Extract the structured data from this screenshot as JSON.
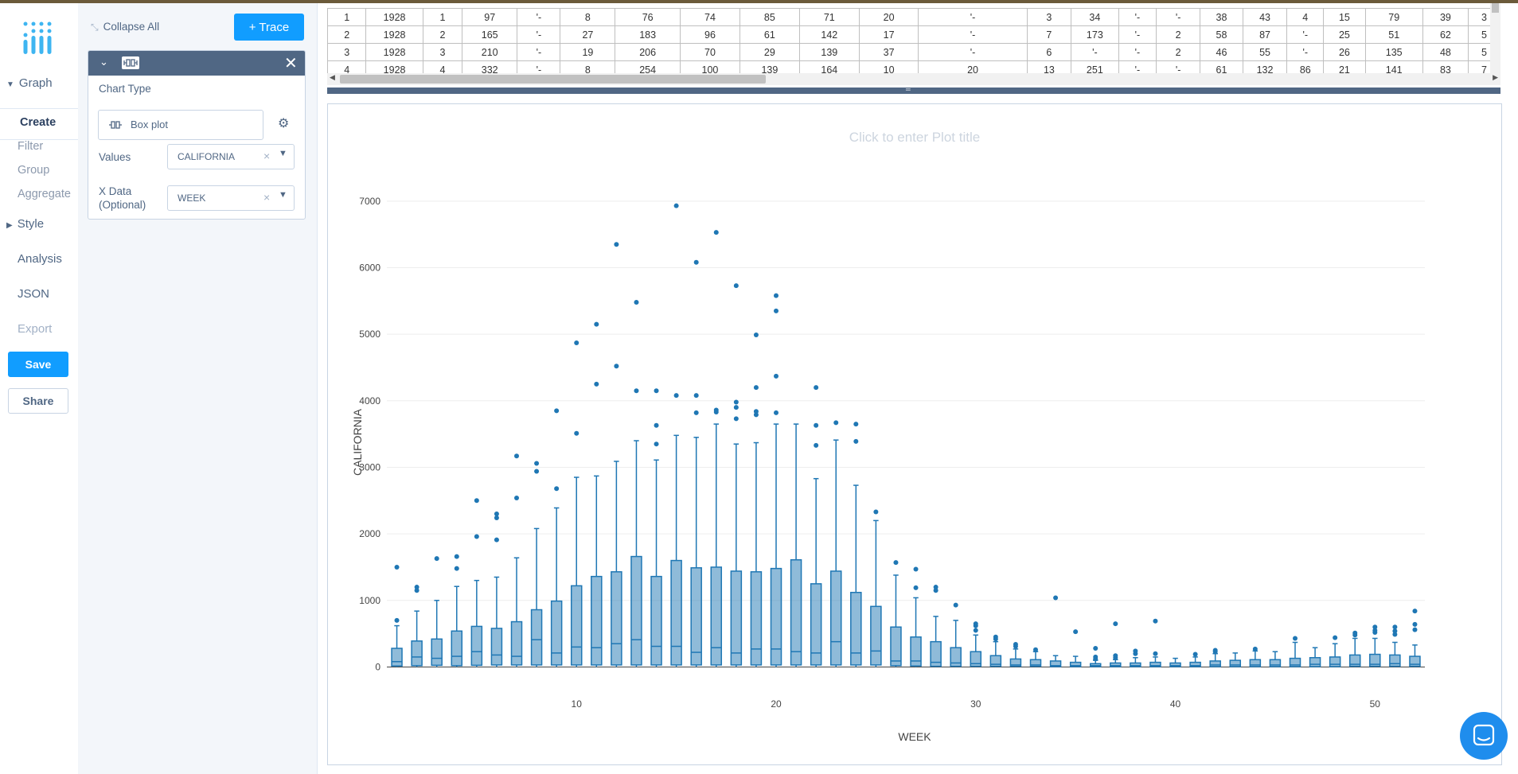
{
  "nav": {
    "graph_label": "Graph",
    "graph_items": [
      "Create",
      "Filter",
      "Group",
      "Aggregate"
    ],
    "style_label": "Style",
    "analysis_label": "Analysis",
    "json_label": "JSON",
    "export_label": "Export",
    "save_label": "Save",
    "share_label": "Share"
  },
  "panel": {
    "collapse_all": "Collapse All",
    "add_trace": "+ Trace",
    "chart_type_label": "Chart Type",
    "chart_type_value": "Box plot",
    "values_label": "Values",
    "values_value": "CALIFORNIA",
    "xdata_label_1": "X Data",
    "xdata_label_2": "(Optional)",
    "xdata_value": "WEEK"
  },
  "grid": {
    "rows": [
      [
        "1",
        "1928",
        "1",
        "97",
        "'-",
        "8",
        "76",
        "74",
        "85",
        "71",
        "20",
        "'-",
        "3",
        "34",
        "'-",
        "'-",
        "38",
        "43",
        "4",
        "15",
        "79",
        "39",
        "3"
      ],
      [
        "2",
        "1928",
        "2",
        "165",
        "'-",
        "27",
        "183",
        "96",
        "61",
        "142",
        "17",
        "'-",
        "7",
        "173",
        "'-",
        "2",
        "58",
        "87",
        "'-",
        "25",
        "51",
        "62",
        "5"
      ],
      [
        "3",
        "1928",
        "3",
        "210",
        "'-",
        "19",
        "206",
        "70",
        "29",
        "139",
        "37",
        "'-",
        "6",
        "'-",
        "'-",
        "2",
        "46",
        "55",
        "'-",
        "26",
        "135",
        "48",
        "5"
      ],
      [
        "4",
        "1928",
        "4",
        "332",
        "'-",
        "8",
        "254",
        "100",
        "139",
        "164",
        "10",
        "20",
        "13",
        "251",
        "'-",
        "'-",
        "61",
        "132",
        "86",
        "21",
        "141",
        "83",
        "7"
      ]
    ]
  },
  "plot": {
    "title_placeholder": "Click to enter Plot title"
  },
  "chart_data": {
    "type": "box",
    "xlabel": "WEEK",
    "ylabel": "CALIFORNIA",
    "title": "",
    "xlim": [
      0.5,
      52.5
    ],
    "ylim": [
      -150,
      7500
    ],
    "x_ticks": [
      10,
      20,
      30,
      40,
      50
    ],
    "y_ticks": [
      0,
      1000,
      2000,
      3000,
      4000,
      5000,
      6000,
      7000
    ],
    "color": "#1f77b4",
    "grid": true,
    "boxes": [
      {
        "week": 1,
        "q1": 15,
        "median": 80,
        "q3": 280,
        "lower": 0,
        "upper": 620,
        "outliers": [
          700,
          1500
        ]
      },
      {
        "week": 2,
        "q1": 20,
        "median": 150,
        "q3": 390,
        "lower": 0,
        "upper": 840,
        "outliers": [
          1150,
          1200
        ]
      },
      {
        "week": 3,
        "q1": 25,
        "median": 130,
        "q3": 420,
        "lower": 0,
        "upper": 1000,
        "outliers": [
          1630
        ]
      },
      {
        "week": 4,
        "q1": 20,
        "median": 160,
        "q3": 540,
        "lower": 0,
        "upper": 1210,
        "outliers": [
          1480,
          1660
        ]
      },
      {
        "week": 5,
        "q1": 25,
        "median": 230,
        "q3": 610,
        "lower": 0,
        "upper": 1300,
        "outliers": [
          1960,
          2500
        ]
      },
      {
        "week": 6,
        "q1": 30,
        "median": 180,
        "q3": 580,
        "lower": 0,
        "upper": 1350,
        "outliers": [
          1910,
          2240,
          2300
        ]
      },
      {
        "week": 7,
        "q1": 30,
        "median": 160,
        "q3": 680,
        "lower": 0,
        "upper": 1640,
        "outliers": [
          2540,
          3170
        ]
      },
      {
        "week": 8,
        "q1": 30,
        "median": 410,
        "q3": 860,
        "lower": 0,
        "upper": 2080,
        "outliers": [
          2940,
          3060
        ]
      },
      {
        "week": 9,
        "q1": 30,
        "median": 210,
        "q3": 990,
        "lower": 0,
        "upper": 2390,
        "outliers": [
          2680,
          3850
        ]
      },
      {
        "week": 10,
        "q1": 30,
        "median": 300,
        "q3": 1220,
        "lower": 0,
        "upper": 2850,
        "outliers": [
          3510,
          4870
        ]
      },
      {
        "week": 11,
        "q1": 30,
        "median": 290,
        "q3": 1360,
        "lower": 0,
        "upper": 2870,
        "outliers": [
          4250,
          5150
        ]
      },
      {
        "week": 12,
        "q1": 30,
        "median": 350,
        "q3": 1430,
        "lower": 0,
        "upper": 3090,
        "outliers": [
          4520,
          6350
        ]
      },
      {
        "week": 13,
        "q1": 30,
        "median": 410,
        "q3": 1660,
        "lower": 0,
        "upper": 3400,
        "outliers": [
          4150,
          5480
        ]
      },
      {
        "week": 14,
        "q1": 30,
        "median": 310,
        "q3": 1360,
        "lower": 0,
        "upper": 3110,
        "outliers": [
          3350,
          3630,
          4150
        ]
      },
      {
        "week": 15,
        "q1": 30,
        "median": 310,
        "q3": 1600,
        "lower": 0,
        "upper": 3480,
        "outliers": [
          4080,
          6930
        ]
      },
      {
        "week": 16,
        "q1": 30,
        "median": 220,
        "q3": 1490,
        "lower": 0,
        "upper": 3450,
        "outliers": [
          3820,
          4080,
          6080
        ]
      },
      {
        "week": 17,
        "q1": 30,
        "median": 290,
        "q3": 1500,
        "lower": 0,
        "upper": 3650,
        "outliers": [
          3830,
          3860,
          6530
        ]
      },
      {
        "week": 18,
        "q1": 30,
        "median": 210,
        "q3": 1440,
        "lower": 0,
        "upper": 3350,
        "outliers": [
          3730,
          3900,
          3980,
          5730
        ]
      },
      {
        "week": 19,
        "q1": 30,
        "median": 270,
        "q3": 1430,
        "lower": 0,
        "upper": 3370,
        "outliers": [
          3790,
          3840,
          4200,
          4990
        ]
      },
      {
        "week": 20,
        "q1": 30,
        "median": 270,
        "q3": 1480,
        "lower": 0,
        "upper": 3650,
        "outliers": [
          3820,
          4370,
          5350,
          5580
        ]
      },
      {
        "week": 21,
        "q1": 30,
        "median": 230,
        "q3": 1610,
        "lower": 0,
        "upper": 3650,
        "outliers": []
      },
      {
        "week": 22,
        "q1": 30,
        "median": 210,
        "q3": 1250,
        "lower": 0,
        "upper": 2830,
        "outliers": [
          3330,
          3630,
          4200
        ]
      },
      {
        "week": 23,
        "q1": 30,
        "median": 380,
        "q3": 1440,
        "lower": 0,
        "upper": 3410,
        "outliers": [
          3670
        ]
      },
      {
        "week": 24,
        "q1": 30,
        "median": 210,
        "q3": 1120,
        "lower": 0,
        "upper": 2730,
        "outliers": [
          3390,
          3650
        ]
      },
      {
        "week": 25,
        "q1": 30,
        "median": 240,
        "q3": 910,
        "lower": 0,
        "upper": 2200,
        "outliers": [
          2330
        ]
      },
      {
        "week": 26,
        "q1": 20,
        "median": 90,
        "q3": 600,
        "lower": 0,
        "upper": 1380,
        "outliers": [
          1570
        ]
      },
      {
        "week": 27,
        "q1": 15,
        "median": 90,
        "q3": 450,
        "lower": 0,
        "upper": 1040,
        "outliers": [
          1190,
          1470
        ]
      },
      {
        "week": 28,
        "q1": 10,
        "median": 70,
        "q3": 380,
        "lower": 0,
        "upper": 760,
        "outliers": [
          1150,
          1200
        ]
      },
      {
        "week": 29,
        "q1": 10,
        "median": 60,
        "q3": 290,
        "lower": 0,
        "upper": 700,
        "outliers": [
          930
        ]
      },
      {
        "week": 30,
        "q1": 10,
        "median": 50,
        "q3": 230,
        "lower": 0,
        "upper": 480,
        "outliers": [
          550,
          620,
          650
        ]
      },
      {
        "week": 31,
        "q1": 10,
        "median": 40,
        "q3": 170,
        "lower": 0,
        "upper": 380,
        "outliers": [
          420,
          450
        ]
      },
      {
        "week": 32,
        "q1": 10,
        "median": 30,
        "q3": 120,
        "lower": 0,
        "upper": 270,
        "outliers": [
          310,
          340
        ]
      },
      {
        "week": 33,
        "q1": 10,
        "median": 30,
        "q3": 110,
        "lower": 0,
        "upper": 230,
        "outliers": [
          260
        ]
      },
      {
        "week": 34,
        "q1": 5,
        "median": 20,
        "q3": 90,
        "lower": 0,
        "upper": 170,
        "outliers": [
          1040
        ]
      },
      {
        "week": 35,
        "q1": 5,
        "median": 20,
        "q3": 70,
        "lower": 0,
        "upper": 160,
        "outliers": [
          530
        ]
      },
      {
        "week": 36,
        "q1": 5,
        "median": 20,
        "q3": 50,
        "lower": 0,
        "upper": 100,
        "outliers": [
          120,
          150,
          280
        ]
      },
      {
        "week": 37,
        "q1": 5,
        "median": 20,
        "q3": 60,
        "lower": 0,
        "upper": 110,
        "outliers": [
          140,
          170,
          650
        ]
      },
      {
        "week": 38,
        "q1": 5,
        "median": 20,
        "q3": 60,
        "lower": 0,
        "upper": 140,
        "outliers": [
          200,
          240
        ]
      },
      {
        "week": 39,
        "q1": 5,
        "median": 20,
        "q3": 70,
        "lower": 0,
        "upper": 150,
        "outliers": [
          200,
          690
        ]
      },
      {
        "week": 40,
        "q1": 5,
        "median": 20,
        "q3": 60,
        "lower": 0,
        "upper": 130,
        "outliers": []
      },
      {
        "week": 41,
        "q1": 5,
        "median": 20,
        "q3": 70,
        "lower": 0,
        "upper": 150,
        "outliers": [
          190
        ]
      },
      {
        "week": 42,
        "q1": 5,
        "median": 30,
        "q3": 90,
        "lower": 0,
        "upper": 200,
        "outliers": [
          230,
          250
        ]
      },
      {
        "week": 43,
        "q1": 5,
        "median": 30,
        "q3": 100,
        "lower": 0,
        "upper": 210,
        "outliers": []
      },
      {
        "week": 44,
        "q1": 5,
        "median": 30,
        "q3": 110,
        "lower": 0,
        "upper": 240,
        "outliers": [
          270
        ]
      },
      {
        "week": 45,
        "q1": 5,
        "median": 30,
        "q3": 110,
        "lower": 0,
        "upper": 230,
        "outliers": []
      },
      {
        "week": 46,
        "q1": 5,
        "median": 30,
        "q3": 130,
        "lower": 0,
        "upper": 370,
        "outliers": [
          430
        ]
      },
      {
        "week": 47,
        "q1": 5,
        "median": 40,
        "q3": 140,
        "lower": 0,
        "upper": 290,
        "outliers": []
      },
      {
        "week": 48,
        "q1": 5,
        "median": 40,
        "q3": 150,
        "lower": 0,
        "upper": 350,
        "outliers": [
          440
        ]
      },
      {
        "week": 49,
        "q1": 10,
        "median": 40,
        "q3": 180,
        "lower": 0,
        "upper": 430,
        "outliers": [
          480,
          510
        ]
      },
      {
        "week": 50,
        "q1": 10,
        "median": 40,
        "q3": 190,
        "lower": 0,
        "upper": 430,
        "outliers": [
          520,
          550,
          600
        ]
      },
      {
        "week": 51,
        "q1": 10,
        "median": 50,
        "q3": 180,
        "lower": 0,
        "upper": 370,
        "outliers": [
          490,
          540,
          600
        ]
      },
      {
        "week": 52,
        "q1": 10,
        "median": 40,
        "q3": 160,
        "lower": 0,
        "upper": 330,
        "outliers": [
          560,
          640,
          840
        ]
      }
    ]
  }
}
